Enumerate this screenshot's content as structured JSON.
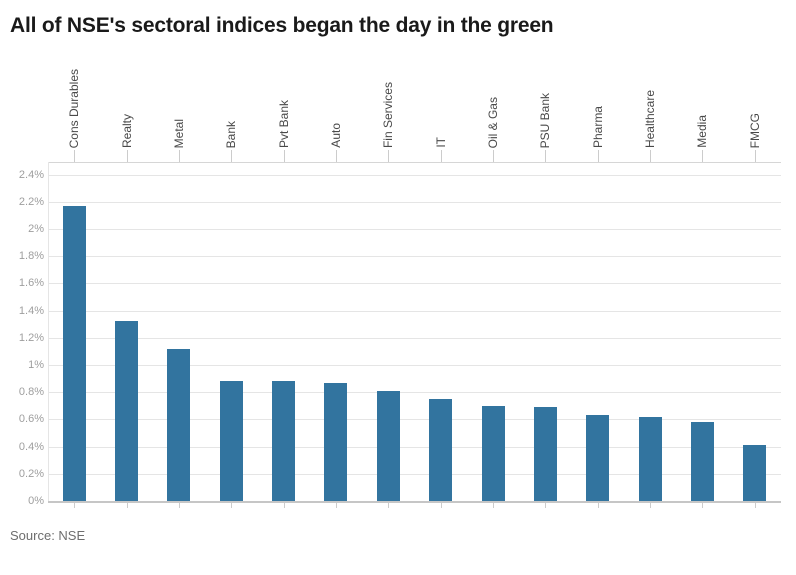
{
  "chart_data": {
    "type": "bar",
    "title": "All of NSE's sectoral indices began the day in the green",
    "source": "Source: NSE",
    "categories": [
      "Cons Durables",
      "Realty",
      "Metal",
      "Bank",
      "Pvt Bank",
      "Auto",
      "Fin Services",
      "IT",
      "Oil & Gas",
      "PSU Bank",
      "Pharma",
      "Healthcare",
      "Media",
      "FMCG"
    ],
    "values": [
      2.17,
      1.32,
      1.12,
      0.88,
      0.88,
      0.87,
      0.81,
      0.75,
      0.7,
      0.69,
      0.63,
      0.62,
      0.58,
      0.41
    ],
    "value_unit": "%",
    "ylim": [
      0,
      2.4
    ],
    "ytick_step": 0.2,
    "ytick_labels": [
      "0%",
      "0.2%",
      "0.4%",
      "0.6%",
      "0.8%",
      "1%",
      "1.2%",
      "1.4%",
      "1.6%",
      "1.8%",
      "2%",
      "2.2%",
      "2.4%"
    ],
    "grid": "horizontal",
    "legend": "none",
    "category_label_position": "top-rotated-vertical",
    "bar_color": "#32749f"
  },
  "colors": {
    "background": "#ffffff",
    "title_text": "#1a1a1a",
    "category_label_text": "#494949",
    "ytick_text": "#9e9e9e",
    "gridline": "#e5e5e5",
    "plot_top_border": "#d6d6d6",
    "axis_line": "#c6c6c6",
    "tick_mark": "#cccccc",
    "source_text": "#6e6e6e",
    "bar": "#32749f"
  }
}
